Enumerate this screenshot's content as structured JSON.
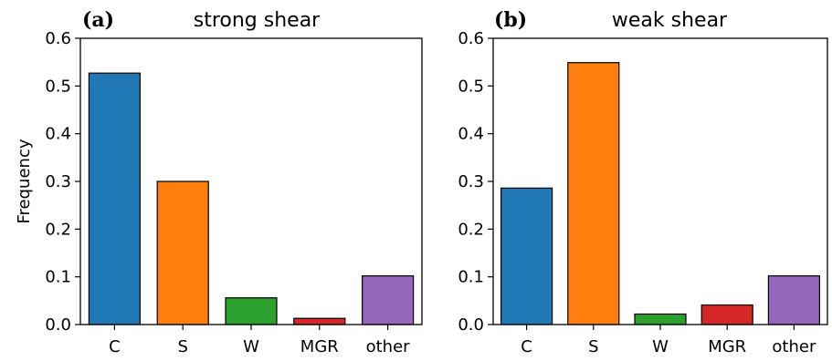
{
  "colors": [
    "#1f77b4",
    "#ff7f0e",
    "#2ca02c",
    "#d62728",
    "#9467bd"
  ],
  "chart_data": [
    {
      "type": "bar",
      "panel_label": "(a)",
      "title": "strong shear",
      "ylabel": "Frequency",
      "xlabel": "",
      "categories": [
        "C",
        "S",
        "W",
        "MGR",
        "other"
      ],
      "values": [
        0.527,
        0.3,
        0.056,
        0.013,
        0.102
      ],
      "ylim": [
        0,
        0.6
      ],
      "yticks": [
        "0.0",
        "0.1",
        "0.2",
        "0.3",
        "0.4",
        "0.5",
        "0.6"
      ],
      "grid": false,
      "legend": false
    },
    {
      "type": "bar",
      "panel_label": "(b)",
      "title": "weak shear",
      "ylabel": "",
      "xlabel": "",
      "categories": [
        "C",
        "S",
        "W",
        "MGR",
        "other"
      ],
      "values": [
        0.286,
        0.549,
        0.022,
        0.041,
        0.102
      ],
      "ylim": [
        0,
        0.6
      ],
      "yticks": [
        "0.0",
        "0.1",
        "0.2",
        "0.3",
        "0.4",
        "0.5",
        "0.6"
      ],
      "grid": false,
      "legend": false
    }
  ]
}
